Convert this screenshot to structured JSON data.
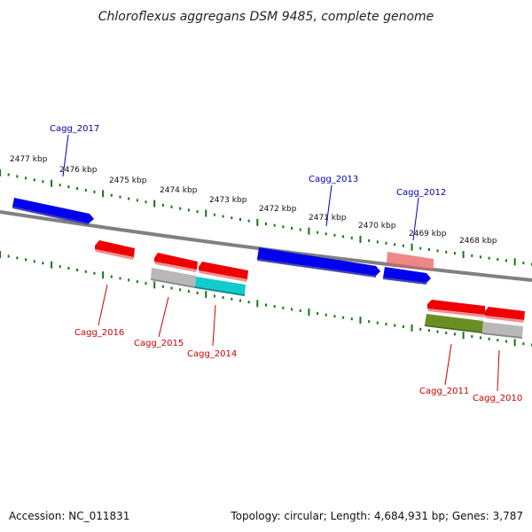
{
  "title": "Chloroflexus aggregans DSM 9485, complete genome",
  "footer": {
    "accession": "Accession: NC_011831",
    "summary": "Topology: circular; Length: 4,684,931 bp; Genes: 3,787"
  },
  "scale": {
    "unit": "kbp",
    "ticks": [
      {
        "kbp": 2477,
        "label": "2477 kbp"
      },
      {
        "kbp": 2476,
        "label": "2476 kbp"
      },
      {
        "kbp": 2475,
        "label": "2475 kbp"
      },
      {
        "kbp": 2474,
        "label": "2474 kbp"
      },
      {
        "kbp": 2473,
        "label": "2473 kbp"
      },
      {
        "kbp": 2472,
        "label": "2472 kbp"
      },
      {
        "kbp": 2471,
        "label": "2471 kbp"
      },
      {
        "kbp": 2470,
        "label": "2470 kbp"
      },
      {
        "kbp": 2469,
        "label": "2469 kbp"
      },
      {
        "kbp": 2468,
        "label": "2468 kbp"
      }
    ]
  },
  "genes": [
    {
      "name": "Cagg_2017",
      "strand": "plus"
    },
    {
      "name": "Cagg_2016",
      "strand": "minus"
    },
    {
      "name": "Cagg_2015",
      "strand": "minus"
    },
    {
      "name": "Cagg_2014",
      "strand": "minus"
    },
    {
      "name": "Cagg_2013",
      "strand": "plus"
    },
    {
      "name": "Cagg_2012",
      "strand": "plus"
    },
    {
      "name": "Cagg_2011",
      "strand": "minus"
    },
    {
      "name": "Cagg_2010",
      "strand": "minus"
    }
  ],
  "colors": {
    "plus_gene": "#0000ee",
    "minus_gene": "#ee0000",
    "plus_label": "#0000bb",
    "minus_label": "#cc0000",
    "pink_feature": "#ee8888",
    "cyan_feature": "#11cccc",
    "olive_feature": "#6b8e23",
    "gray_feature": "#b8b8b8",
    "backbone": "#808080",
    "tick": "#117711"
  }
}
